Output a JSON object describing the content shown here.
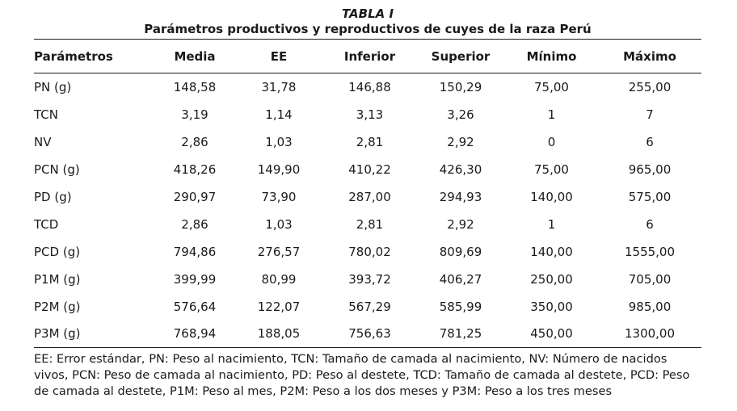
{
  "table": {
    "label": "TABLA I",
    "title": "Parámetros productivos y reproductivos de cuyes de la raza Perú",
    "headers": [
      "Parámetros",
      "Media",
      "EE",
      "Inferior",
      "Superior",
      "Mínimo",
      "Máximo"
    ],
    "rows": [
      [
        "PN (g)",
        "148,58",
        "31,78",
        "146,88",
        "150,29",
        "75,00",
        "255,00"
      ],
      [
        "TCN",
        "3,19",
        "1,14",
        "3,13",
        "3,26",
        "1",
        "7"
      ],
      [
        "NV",
        "2,86",
        "1,03",
        "2,81",
        "2,92",
        "0",
        "6"
      ],
      [
        "PCN (g)",
        "418,26",
        "149,90",
        "410,22",
        "426,30",
        "75,00",
        "965,00"
      ],
      [
        "PD (g)",
        "290,97",
        "73,90",
        "287,00",
        "294,93",
        "140,00",
        "575,00"
      ],
      [
        "TCD",
        "2,86",
        "1,03",
        "2,81",
        "2,92",
        "1",
        "6"
      ],
      [
        "PCD (g)",
        "794,86",
        "276,57",
        "780,02",
        "809,69",
        "140,00",
        "1555,00"
      ],
      [
        "P1M (g)",
        "399,99",
        "80,99",
        "393,72",
        "406,27",
        "250,00",
        "705,00"
      ],
      [
        "P2M (g)",
        "576,64",
        "122,07",
        "567,29",
        "585,99",
        "350,00",
        "985,00"
      ],
      [
        "P3M (g)",
        "768,94",
        "188,05",
        "756,63",
        "781,25",
        "450,00",
        "1300,00"
      ]
    ],
    "footnote": "EE: Error estándar, PN: Peso al nacimiento, TCN: Tamaño de camada al nacimiento, NV: Número de nacidos vivos, PCN: Peso de camada al nacimiento, PD: Peso al destete, TCD: Tamaño de camada al destete, PCD: Peso de camada al destete, P1M: Peso al mes, P2M: Peso a los dos meses y P3M: Peso a los tres meses"
  }
}
